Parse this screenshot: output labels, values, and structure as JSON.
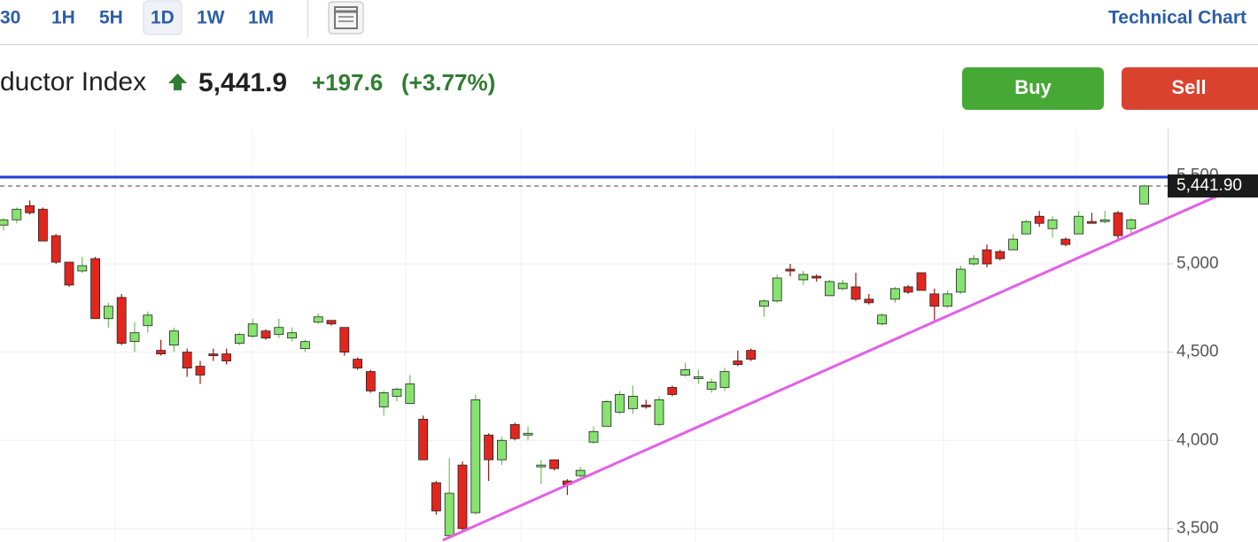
{
  "toolbar": {
    "intervals": [
      "30",
      "1H",
      "5H",
      "1D",
      "1W",
      "1M"
    ],
    "selected": 3,
    "link": "Technical Chart"
  },
  "quote": {
    "name": "ductor Index",
    "price": "5,441.9",
    "change": "+197.6",
    "change_pct": "(+3.77%)"
  },
  "actions": [
    "Buy",
    "Sell"
  ],
  "chart_data": {
    "type": "candlestick",
    "open": [
      5220,
      5250,
      5330,
      5310,
      5160,
      5010,
      4960,
      5030,
      4690,
      4810,
      4560,
      4650,
      4510,
      4540,
      4500,
      4420,
      4490,
      4490,
      4550,
      4590,
      4620,
      4600,
      4580,
      4520,
      4670,
      4680,
      4640,
      4460,
      4390,
      4190,
      4250,
      4210,
      4120,
      3760,
      3460,
      3860,
      3590,
      4030,
      3890,
      4090,
      4030,
      3850,
      3890,
      3770,
      3800,
      3990,
      4080,
      4160,
      4180,
      4200,
      4090,
      4300,
      4370,
      4350,
      4290,
      4300,
      4450,
      4510,
      4760,
      4790,
      4970,
      4910,
      4930,
      4820,
      4860,
      4870,
      4800,
      4660,
      4800,
      4870,
      4950,
      4830,
      4760,
      4840,
      5000,
      5080,
      5070,
      5080,
      5170,
      5270,
      5200,
      5140,
      5170,
      5240,
      5240,
      5290,
      5200,
      5340
    ],
    "high": [
      5260,
      5320,
      5360,
      5320,
      5170,
      5010,
      5040,
      5040,
      4780,
      4830,
      4670,
      4730,
      4570,
      4640,
      4520,
      4450,
      4520,
      4520,
      4610,
      4690,
      4630,
      4690,
      4640,
      4570,
      4720,
      4680,
      4640,
      4470,
      4400,
      4280,
      4300,
      4370,
      4140,
      3770,
      3900,
      3880,
      4260,
      4040,
      4020,
      4100,
      4080,
      3890,
      3890,
      3780,
      3850,
      4080,
      4230,
      4280,
      4310,
      4230,
      4250,
      4310,
      4440,
      4400,
      4350,
      4410,
      4510,
      4520,
      4800,
      4940,
      5000,
      4960,
      4940,
      4910,
      4910,
      4950,
      4830,
      4720,
      4870,
      4880,
      4950,
      4860,
      4850,
      4990,
      5050,
      5110,
      5080,
      5170,
      5250,
      5300,
      5270,
      5150,
      5300,
      5290,
      5300,
      5300,
      5260,
      5450
    ],
    "low": [
      5190,
      5230,
      5280,
      5130,
      5000,
      4870,
      4950,
      4690,
      4640,
      4540,
      4500,
      4610,
      4480,
      4500,
      4360,
      4320,
      4450,
      4430,
      4540,
      4580,
      4570,
      4580,
      4560,
      4500,
      4660,
      4650,
      4480,
      4400,
      4270,
      4140,
      4220,
      4210,
      3890,
      3580,
      3440,
      3490,
      3580,
      3770,
      3860,
      4000,
      4000,
      3750,
      3830,
      3690,
      3790,
      3980,
      4080,
      4150,
      4150,
      4180,
      4080,
      4250,
      4360,
      4320,
      4270,
      4280,
      4420,
      4450,
      4700,
      4780,
      4930,
      4880,
      4900,
      4820,
      4850,
      4790,
      4770,
      4650,
      4780,
      4830,
      4850,
      4680,
      4750,
      4830,
      4990,
      4980,
      5020,
      5080,
      5170,
      5210,
      5150,
      5100,
      5170,
      5230,
      5230,
      5140,
      5170,
      5340
    ],
    "close": [
      5250,
      5310,
      5290,
      5130,
      5010,
      4880,
      4990,
      4690,
      4760,
      4550,
      4610,
      4710,
      4490,
      4620,
      4410,
      4370,
      4480,
      4450,
      4600,
      4660,
      4580,
      4640,
      4610,
      4560,
      4700,
      4660,
      4500,
      4410,
      4280,
      4270,
      4290,
      4320,
      3890,
      3600,
      3700,
      3500,
      4230,
      3890,
      4000,
      4010,
      4040,
      3860,
      3840,
      3750,
      3830,
      4050,
      4220,
      4260,
      4250,
      4190,
      4230,
      4260,
      4400,
      4360,
      4330,
      4390,
      4430,
      4460,
      4790,
      4920,
      4960,
      4940,
      4920,
      4900,
      4890,
      4800,
      4780,
      4710,
      4860,
      4840,
      4850,
      4760,
      4830,
      4970,
      5030,
      5000,
      5030,
      5140,
      5240,
      5230,
      5250,
      5110,
      5270,
      5230,
      5250,
      5160,
      5250,
      5441.9
    ],
    "ylim": [
      3424,
      5768
    ],
    "yticks": [
      {
        "value": 3500,
        "label": "3,500"
      },
      {
        "value": 4000,
        "label": "4,000"
      },
      {
        "value": 4500,
        "label": "4,500"
      },
      {
        "value": 5000,
        "label": "5,000"
      },
      {
        "value": 5500,
        "label": "5,500"
      }
    ],
    "grid": true,
    "up_color": "#86e36f",
    "down_color": "#e2261e",
    "last_price": {
      "value": 5441.9,
      "label": "5,441.90"
    },
    "lines": [
      {
        "color": "#1e3fe0",
        "x": [
          -0.3,
          95.7
        ],
        "values": [
          5492,
          5492
        ]
      },
      {
        "color": "#e45ee8",
        "x": [
          33.5,
          94.3
        ],
        "values": [
          3434,
          5442
        ]
      }
    ]
  }
}
